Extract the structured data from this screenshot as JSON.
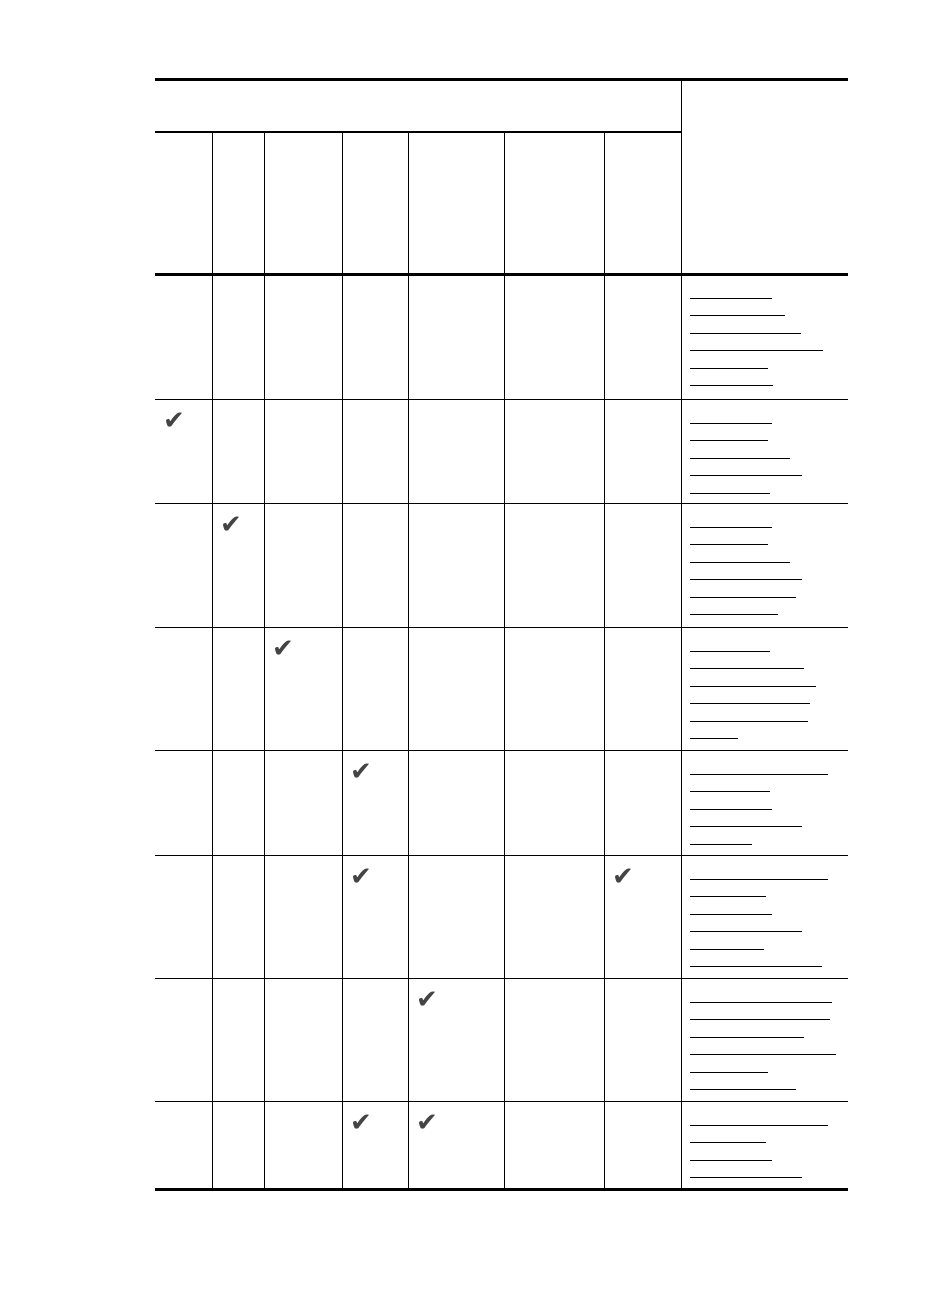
{
  "table": {
    "column_count": 8,
    "check_color": "#444444",
    "check_icon": "check-mark-icon",
    "rows": [
      {
        "checks": [
          false,
          false,
          false,
          false,
          false,
          false,
          false
        ]
      },
      {
        "checks": [
          true,
          false,
          false,
          false,
          false,
          false,
          false
        ]
      },
      {
        "checks": [
          false,
          true,
          false,
          false,
          false,
          false,
          false
        ]
      },
      {
        "checks": [
          false,
          false,
          true,
          false,
          false,
          false,
          false
        ]
      },
      {
        "checks": [
          false,
          false,
          false,
          true,
          false,
          false,
          false
        ]
      },
      {
        "checks": [
          false,
          false,
          false,
          true,
          false,
          false,
          true
        ]
      },
      {
        "checks": [
          false,
          false,
          false,
          false,
          true,
          false,
          false
        ]
      },
      {
        "checks": [
          false,
          false,
          false,
          true,
          true,
          false,
          false
        ]
      }
    ]
  }
}
